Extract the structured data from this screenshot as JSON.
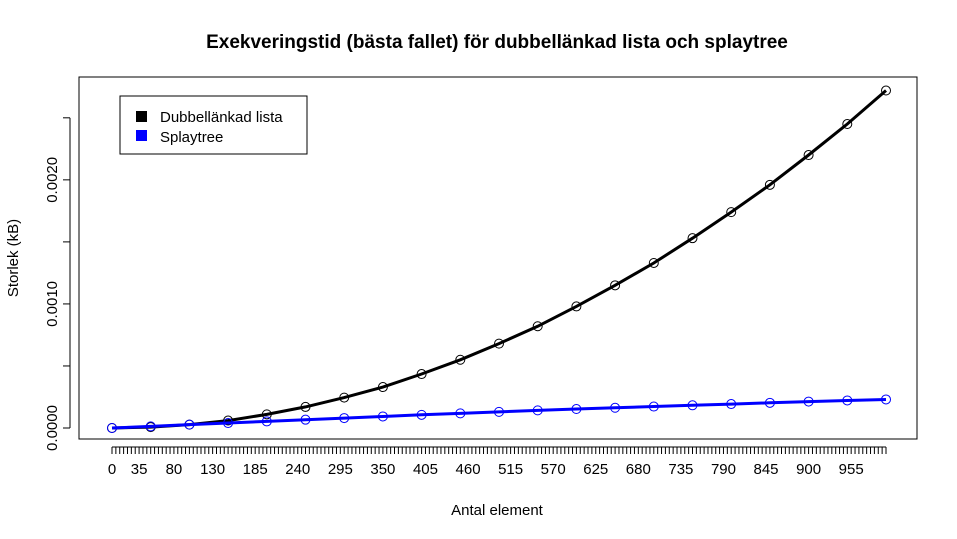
{
  "chart_data": {
    "type": "line",
    "title": "Exekveringstid (bästa fallet) för dubbellänkad lista och splaytree",
    "xlabel": "Antal element",
    "ylabel": "Storlek (kB)",
    "x_tick_labels": [
      "0",
      "35",
      "80",
      "130",
      "185",
      "240",
      "295",
      "350",
      "405",
      "460",
      "515",
      "570",
      "625",
      "680",
      "735",
      "790",
      "845",
      "900",
      "955"
    ],
    "x_tick_values": [
      0,
      35,
      80,
      130,
      185,
      240,
      295,
      350,
      405,
      460,
      515,
      570,
      625,
      680,
      735,
      790,
      845,
      900,
      955
    ],
    "xlim": [
      0,
      1000
    ],
    "y_tick_labels": [
      "0.0000",
      "0.0010",
      "0.0020"
    ],
    "y_tick_values": [
      0.0,
      0.001,
      0.002
    ],
    "ylim": [
      0.0,
      0.0027
    ],
    "legend": {
      "placement": "top-left"
    },
    "series": [
      {
        "name": "Dubbellänkad lista",
        "color": "#000000",
        "x": [
          0,
          50,
          100,
          150,
          200,
          250,
          300,
          350,
          400,
          450,
          500,
          550,
          600,
          650,
          700,
          750,
          800,
          850,
          900,
          950,
          1000
        ],
        "values": [
          0.0,
          7e-06,
          2.7e-05,
          6e-05,
          0.00011,
          0.00017,
          0.000245,
          0.00033,
          0.000435,
          0.00055,
          0.00068,
          0.00082,
          0.00098,
          0.00115,
          0.00133,
          0.00153,
          0.00174,
          0.00196,
          0.0022,
          0.00245,
          0.00272
        ]
      },
      {
        "name": "Splaytree",
        "color": "#0000FF",
        "x": [
          0,
          50,
          100,
          150,
          200,
          250,
          300,
          350,
          400,
          450,
          500,
          550,
          600,
          650,
          700,
          750,
          800,
          850,
          900,
          950,
          1000
        ],
        "values": [
          0.0,
          1.3e-05,
          2.7e-05,
          4e-05,
          5.3e-05,
          6.7e-05,
          8e-05,
          9.3e-05,
          0.000106,
          0.000118,
          0.00013,
          0.000142,
          0.000153,
          0.000163,
          0.000173,
          0.000183,
          0.000193,
          0.000203,
          0.000213,
          0.000222,
          0.00023
        ]
      }
    ]
  }
}
